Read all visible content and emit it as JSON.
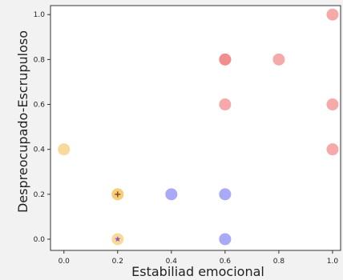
{
  "chart_data": {
    "type": "scatter",
    "title": "",
    "xlabel": "Estabiliad emocional",
    "ylabel": "Despreocupado-Escrupuloso",
    "xlim": [
      -0.05,
      1.03
    ],
    "ylim": [
      -0.05,
      1.04
    ],
    "x_ticks": [
      "0.0",
      "0.2",
      "0.4",
      "0.6",
      "0.8",
      "1.0"
    ],
    "y_ticks": [
      "0.0",
      "0.2",
      "0.4",
      "0.6",
      "0.8",
      "1.0"
    ],
    "grid": false,
    "legend": "none",
    "series": [
      {
        "color": "#f08080",
        "points": [
          {
            "x": 0.6,
            "y": 0.8
          },
          {
            "x": 0.6,
            "y": 0.8
          },
          {
            "x": 0.8,
            "y": 0.8
          },
          {
            "x": 0.6,
            "y": 0.6
          },
          {
            "x": 1.0,
            "y": 1.0
          },
          {
            "x": 1.0,
            "y": 0.6
          },
          {
            "x": 1.0,
            "y": 0.4
          }
        ]
      },
      {
        "color": "#8080f0",
        "points": [
          {
            "x": 0.4,
            "y": 0.2
          },
          {
            "x": 0.6,
            "y": 0.2
          },
          {
            "x": 0.6,
            "y": 0.0
          }
        ]
      },
      {
        "color": "#f5c96a",
        "points": [
          {
            "x": 0.0,
            "y": 0.4
          },
          {
            "x": 0.2,
            "y": 0.2
          },
          {
            "x": 0.2,
            "y": 0.2
          },
          {
            "x": 0.2,
            "y": 0.0
          }
        ]
      }
    ],
    "markers": [
      {
        "x": 0.2,
        "y": 0.2,
        "symbol": "plus",
        "color": "#8a4b2a"
      },
      {
        "x": 0.2,
        "y": 0.0,
        "symbol": "star",
        "color": "#9b59b6"
      }
    ]
  }
}
